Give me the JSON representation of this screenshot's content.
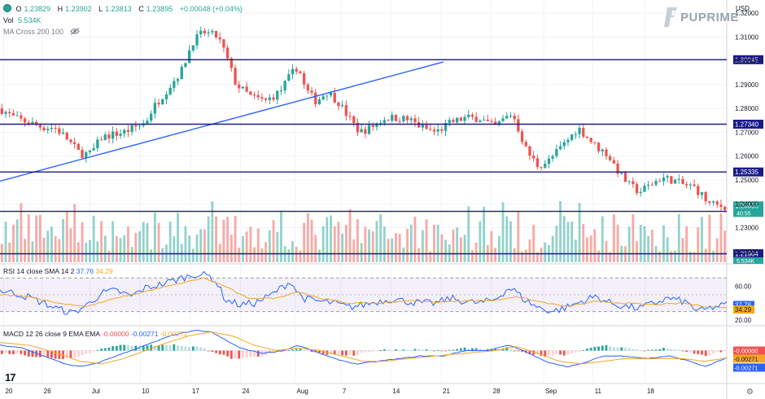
{
  "header": {
    "ohlc": [
      {
        "k": "O",
        "v": "1.23829"
      },
      {
        "k": "H",
        "v": "1.23902"
      },
      {
        "k": "L",
        "v": "1.23813"
      },
      {
        "k": "C",
        "v": "1.23895"
      }
    ],
    "change": "+0.00048 (+0.04%)",
    "vol_label": "Vol",
    "vol_value": "5.534K",
    "ma_label": "MA Cross 200 100",
    "currency": "USD",
    "brand": "PUPRIME"
  },
  "rsi": {
    "label": "RSI 14 close SMA 14 2",
    "value": "37.76",
    "sma": "34.29"
  },
  "macd": {
    "label": "MACD 12 26 close 9 EMA EMA",
    "hist": "-0.00000",
    "macd": "-0.00271",
    "signal": "-0.00271"
  },
  "colors": {
    "up": "#26a69a",
    "down": "#ef5350",
    "level_line": "#1a1a8c",
    "trend_line": "#2962ff",
    "rsi_line": "#2962ff",
    "rsi_sma": "#f5a623",
    "macd_line": "#2962ff",
    "signal_line": "#f5a623"
  },
  "chart_data": {
    "type": "candlestick",
    "symbol_price_axis": {
      "ticks": [
        "1.32000",
        "1.31000",
        "1.30000",
        "1.29000",
        "1.28000",
        "1.27000",
        "1.26000",
        "1.25000",
        "1.24000",
        "1.23000",
        "1.22000"
      ],
      "tick_values": [
        1.32,
        1.31,
        1.3,
        1.29,
        1.28,
        1.27,
        1.26,
        1.25,
        1.24,
        1.23,
        1.22
      ],
      "ylim": [
        1.2155,
        1.3255
      ]
    },
    "horizontal_levels": [
      {
        "label": "1.30045",
        "value": 1.30045
      },
      {
        "label": "1.27340",
        "value": 1.2734
      },
      {
        "label": "1.25335",
        "value": 1.25335
      },
      {
        "label": "1.23684",
        "value": 1.23684
      },
      {
        "label": "1.21904",
        "value": 1.21904
      }
    ],
    "current_price": {
      "label": "1.23895",
      "value": 1.23895,
      "countdown": "40:55"
    },
    "volume_badge": "5.534K",
    "trendline": {
      "from_pos": 0.0,
      "from_price": 1.2495,
      "to_pos": 0.61,
      "to_price": 1.2995
    },
    "x_ticks": [
      {
        "label": "20",
        "pos": 0.005
      },
      {
        "label": "26",
        "pos": 0.058
      },
      {
        "label": "Jul",
        "pos": 0.124
      },
      {
        "label": "10",
        "pos": 0.193
      },
      {
        "label": "17",
        "pos": 0.262
      },
      {
        "label": "24",
        "pos": 0.331
      },
      {
        "label": "Aug",
        "pos": 0.406
      },
      {
        "label": "7",
        "pos": 0.469
      },
      {
        "label": "14",
        "pos": 0.538
      },
      {
        "label": "21",
        "pos": 0.607
      },
      {
        "label": "28",
        "pos": 0.676
      },
      {
        "label": "Sep",
        "pos": 0.748
      },
      {
        "label": "11",
        "pos": 0.816
      },
      {
        "label": "18",
        "pos": 0.888
      }
    ],
    "price_path": [
      [
        0.0,
        1.28
      ],
      [
        0.02,
        1.276
      ],
      [
        0.04,
        1.274
      ],
      [
        0.06,
        1.272
      ],
      [
        0.075,
        1.272
      ],
      [
        0.09,
        1.268
      ],
      [
        0.11,
        1.261
      ],
      [
        0.125,
        1.261
      ],
      [
        0.14,
        1.268
      ],
      [
        0.17,
        1.27
      ],
      [
        0.2,
        1.274
      ],
      [
        0.21,
        1.28
      ],
      [
        0.23,
        1.288
      ],
      [
        0.25,
        1.296
      ],
      [
        0.265,
        1.308
      ],
      [
        0.28,
        1.312
      ],
      [
        0.3,
        1.31
      ],
      [
        0.31,
        1.303
      ],
      [
        0.325,
        1.29
      ],
      [
        0.345,
        1.285
      ],
      [
        0.365,
        1.283
      ],
      [
        0.385,
        1.287
      ],
      [
        0.4,
        1.294
      ],
      [
        0.41,
        1.298
      ],
      [
        0.42,
        1.288
      ],
      [
        0.435,
        1.283
      ],
      [
        0.45,
        1.287
      ],
      [
        0.465,
        1.283
      ],
      [
        0.48,
        1.276
      ],
      [
        0.495,
        1.27
      ],
      [
        0.51,
        1.272
      ],
      [
        0.53,
        1.276
      ],
      [
        0.55,
        1.276
      ],
      [
        0.565,
        1.275
      ],
      [
        0.58,
        1.272
      ],
      [
        0.6,
        1.27
      ],
      [
        0.62,
        1.274
      ],
      [
        0.64,
        1.276
      ],
      [
        0.66,
        1.276
      ],
      [
        0.68,
        1.272
      ],
      [
        0.695,
        1.276
      ],
      [
        0.705,
        1.278
      ],
      [
        0.715,
        1.27
      ],
      [
        0.725,
        1.262
      ],
      [
        0.74,
        1.256
      ],
      [
        0.755,
        1.258
      ],
      [
        0.77,
        1.263
      ],
      [
        0.785,
        1.268
      ],
      [
        0.795,
        1.272
      ],
      [
        0.805,
        1.269
      ],
      [
        0.82,
        1.264
      ],
      [
        0.835,
        1.261
      ],
      [
        0.85,
        1.254
      ],
      [
        0.865,
        1.248
      ],
      [
        0.88,
        1.245
      ],
      [
        0.895,
        1.248
      ],
      [
        0.91,
        1.251
      ],
      [
        0.925,
        1.25
      ],
      [
        0.94,
        1.248
      ],
      [
        0.955,
        1.247
      ],
      [
        0.965,
        1.244
      ],
      [
        0.975,
        1.24
      ],
      [
        0.99,
        1.239
      ],
      [
        1.0,
        1.239
      ]
    ],
    "rsi_axis": {
      "ticks": [
        "60.00",
        "20.00"
      ],
      "tick_values": [
        60,
        20
      ],
      "ylim": [
        15,
        85
      ],
      "band": [
        30,
        70
      ]
    },
    "rsi_path": [
      [
        0.0,
        55
      ],
      [
        0.02,
        52
      ],
      [
        0.04,
        47
      ],
      [
        0.06,
        40
      ],
      [
        0.08,
        33
      ],
      [
        0.1,
        28
      ],
      [
        0.12,
        38
      ],
      [
        0.14,
        52
      ],
      [
        0.16,
        55
      ],
      [
        0.18,
        48
      ],
      [
        0.2,
        58
      ],
      [
        0.22,
        62
      ],
      [
        0.25,
        70
      ],
      [
        0.27,
        75
      ],
      [
        0.29,
        72
      ],
      [
        0.3,
        62
      ],
      [
        0.31,
        44
      ],
      [
        0.33,
        38
      ],
      [
        0.35,
        40
      ],
      [
        0.37,
        48
      ],
      [
        0.39,
        60
      ],
      [
        0.4,
        66
      ],
      [
        0.41,
        52
      ],
      [
        0.42,
        45
      ],
      [
        0.44,
        42
      ],
      [
        0.46,
        40
      ],
      [
        0.48,
        35
      ],
      [
        0.5,
        38
      ],
      [
        0.52,
        42
      ],
      [
        0.54,
        45
      ],
      [
        0.56,
        42
      ],
      [
        0.58,
        40
      ],
      [
        0.6,
        40
      ],
      [
        0.62,
        46
      ],
      [
        0.64,
        42
      ],
      [
        0.66,
        40
      ],
      [
        0.68,
        44
      ],
      [
        0.7,
        58
      ],
      [
        0.71,
        54
      ],
      [
        0.72,
        45
      ],
      [
        0.74,
        35
      ],
      [
        0.76,
        30
      ],
      [
        0.78,
        35
      ],
      [
        0.8,
        42
      ],
      [
        0.82,
        48
      ],
      [
        0.84,
        40
      ],
      [
        0.86,
        36
      ],
      [
        0.88,
        34
      ],
      [
        0.9,
        40
      ],
      [
        0.92,
        46
      ],
      [
        0.94,
        42
      ],
      [
        0.95,
        38
      ],
      [
        0.96,
        30
      ],
      [
        0.97,
        32
      ],
      [
        0.98,
        35
      ],
      [
        1.0,
        38
      ]
    ],
    "rsi_sma_path": [
      [
        0.0,
        50
      ],
      [
        0.04,
        48
      ],
      [
        0.08,
        40
      ],
      [
        0.12,
        36
      ],
      [
        0.16,
        46
      ],
      [
        0.2,
        54
      ],
      [
        0.24,
        62
      ],
      [
        0.28,
        70
      ],
      [
        0.31,
        60
      ],
      [
        0.34,
        46
      ],
      [
        0.38,
        46
      ],
      [
        0.41,
        54
      ],
      [
        0.44,
        46
      ],
      [
        0.48,
        40
      ],
      [
        0.52,
        40
      ],
      [
        0.56,
        43
      ],
      [
        0.6,
        41
      ],
      [
        0.64,
        43
      ],
      [
        0.68,
        43
      ],
      [
        0.71,
        48
      ],
      [
        0.74,
        42
      ],
      [
        0.78,
        36
      ],
      [
        0.82,
        42
      ],
      [
        0.86,
        40
      ],
      [
        0.9,
        38
      ],
      [
        0.94,
        40
      ],
      [
        0.97,
        36
      ],
      [
        1.0,
        34.3
      ]
    ],
    "macd_axis": {
      "ylim": [
        -0.012,
        0.009
      ],
      "zero": 0.0
    },
    "macd_path": [
      [
        0.0,
        0.002
      ],
      [
        0.03,
        0.001
      ],
      [
        0.06,
        -0.002
      ],
      [
        0.09,
        -0.005
      ],
      [
        0.11,
        -0.006
      ],
      [
        0.13,
        -0.005
      ],
      [
        0.15,
        -0.003
      ],
      [
        0.18,
        0.0
      ],
      [
        0.21,
        0.003
      ],
      [
        0.24,
        0.006
      ],
      [
        0.27,
        0.0075
      ],
      [
        0.29,
        0.007
      ],
      [
        0.31,
        0.004
      ],
      [
        0.33,
        0.001
      ],
      [
        0.36,
        -0.001
      ],
      [
        0.39,
        0.0
      ],
      [
        0.41,
        0.002
      ],
      [
        0.43,
        0.0
      ],
      [
        0.46,
        -0.003
      ],
      [
        0.49,
        -0.005
      ],
      [
        0.52,
        -0.004
      ],
      [
        0.55,
        -0.003
      ],
      [
        0.58,
        -0.002
      ],
      [
        0.61,
        -0.002
      ],
      [
        0.64,
        0.0
      ],
      [
        0.67,
        0.0
      ],
      [
        0.7,
        0.002
      ],
      [
        0.72,
        0.0
      ],
      [
        0.75,
        -0.004
      ],
      [
        0.78,
        -0.006
      ],
      [
        0.8,
        -0.005
      ],
      [
        0.83,
        -0.002
      ],
      [
        0.86,
        -0.002
      ],
      [
        0.89,
        -0.003
      ],
      [
        0.92,
        -0.002
      ],
      [
        0.95,
        -0.004
      ],
      [
        0.97,
        -0.006
      ],
      [
        1.0,
        -0.0027
      ]
    ],
    "signal_path": [
      [
        0.0,
        0.003
      ],
      [
        0.04,
        0.002
      ],
      [
        0.08,
        -0.001
      ],
      [
        0.11,
        -0.004
      ],
      [
        0.14,
        -0.005
      ],
      [
        0.17,
        -0.003
      ],
      [
        0.2,
        0.0
      ],
      [
        0.23,
        0.003
      ],
      [
        0.26,
        0.0055
      ],
      [
        0.29,
        0.007
      ],
      [
        0.32,
        0.0055
      ],
      [
        0.35,
        0.002
      ],
      [
        0.38,
        0.0
      ],
      [
        0.41,
        0.001
      ],
      [
        0.44,
        0.0
      ],
      [
        0.47,
        -0.002
      ],
      [
        0.5,
        -0.004
      ],
      [
        0.53,
        -0.004
      ],
      [
        0.56,
        -0.003
      ],
      [
        0.6,
        -0.002
      ],
      [
        0.64,
        -0.001
      ],
      [
        0.68,
        0.0
      ],
      [
        0.71,
        0.0015
      ],
      [
        0.74,
        -0.001
      ],
      [
        0.77,
        -0.004
      ],
      [
        0.8,
        -0.005
      ],
      [
        0.83,
        -0.004
      ],
      [
        0.86,
        -0.003
      ],
      [
        0.9,
        -0.003
      ],
      [
        0.94,
        -0.003
      ],
      [
        0.97,
        -0.004
      ],
      [
        1.0,
        -0.0027
      ]
    ]
  }
}
